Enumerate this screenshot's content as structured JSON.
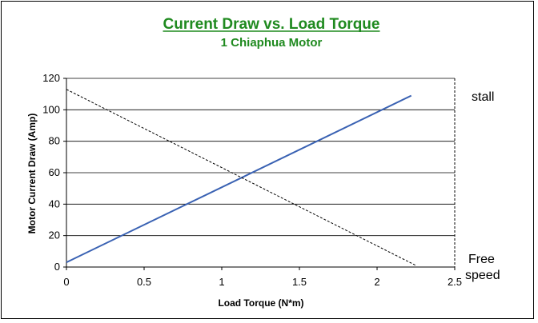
{
  "chart_data": {
    "type": "line",
    "title": "Current Draw vs. Load Torque",
    "subtitle": "1 Chiaphua Motor",
    "xlabel": "Load Torque (N*m)",
    "ylabel": "Motor Current Draw (Amp)",
    "xlim": [
      0,
      2.5
    ],
    "ylim": [
      0,
      120
    ],
    "xticks": [
      "0",
      "0.5",
      "1",
      "1.5",
      "2",
      "2.5"
    ],
    "yticks": [
      "0",
      "20",
      "40",
      "60",
      "80",
      "100",
      "120"
    ],
    "grid": "horizontal",
    "series": [
      {
        "style": "solid",
        "color": "#3a62b3",
        "x": [
          0,
          2.22
        ],
        "y": [
          3,
          109
        ]
      },
      {
        "style": "dashed",
        "color": "#000000",
        "x": [
          0,
          2.25
        ],
        "y": [
          113,
          1
        ]
      }
    ],
    "vertical_line": {
      "x": 2.5,
      "style": "dashed"
    },
    "annotations": {
      "stall": "stall",
      "free_line1": "Free",
      "free_line2": "speed"
    }
  }
}
